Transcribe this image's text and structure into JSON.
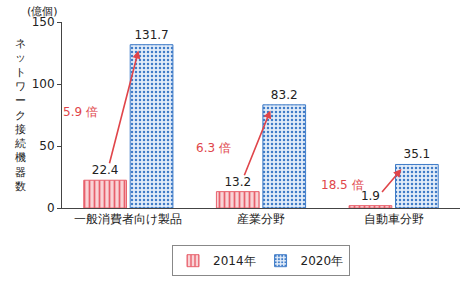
{
  "chart_data": {
    "type": "bar",
    "ylabel": "ネットワーク接続機器数",
    "categories": [
      "一般消費者向け製品",
      "産業分野",
      "自動車分野"
    ],
    "series": [
      {
        "name": "2014年",
        "color": "#e8606c",
        "values": [
          22.4,
          13.2,
          1.9
        ]
      },
      {
        "name": "2020年",
        "color": "#3f7cc8",
        "values": [
          131.7,
          83.2,
          35.1
        ]
      }
    ],
    "annotations": {
      "unit": "(億個)",
      "ratios": [
        "5.9 倍",
        "6.3 倍",
        "18.5 倍"
      ],
      "color": "#e0454a"
    },
    "ylim": [
      0,
      150
    ],
    "yticks": [
      0,
      50,
      100,
      150
    ],
    "grid": false,
    "legend": "bottom",
    "data_labels": true
  }
}
